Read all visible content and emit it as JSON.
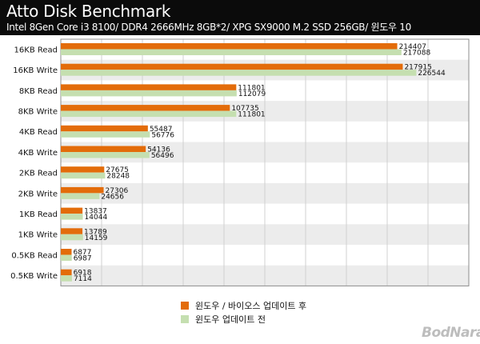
{
  "header": {
    "title": "Atto Disk Benchmark",
    "subtitle": "Intel 8Gen Core i3 8100/ DDR4 2666MHz 8GB*2/ XPG SX9000 M.2 SSD 256GB/ 윈도우 10"
  },
  "watermark": "BodNara",
  "colors": {
    "after": "#e36c0a",
    "before": "#c5dfb0",
    "row_alt": "#ececec",
    "grid": "#d0d0d0"
  },
  "chart_data": {
    "type": "bar",
    "orientation": "horizontal",
    "categories": [
      "16KB Read",
      "16KB Write",
      "8KB Read",
      "8KB Write",
      "4KB Read",
      "4KB Write",
      "2KB Read",
      "2KB Write",
      "1KB Read",
      "1KB Write",
      "0.5KB Read",
      "0.5KB Write"
    ],
    "series": [
      {
        "name": "윈도우 / 바이오스 업데이트 후",
        "color": "#e36c0a",
        "values": [
          214407,
          217915,
          111801,
          107735,
          55487,
          54136,
          27675,
          27306,
          13837,
          13789,
          6877,
          6918
        ]
      },
      {
        "name": "윈도우 업데이트 전",
        "color": "#c5dfb0",
        "values": [
          217088,
          226544,
          112079,
          111801,
          56776,
          56496,
          28248,
          24656,
          14044,
          14159,
          6987,
          7114
        ]
      }
    ],
    "xlim": [
      0,
      260000
    ],
    "grid": true,
    "legend": "bottom"
  }
}
